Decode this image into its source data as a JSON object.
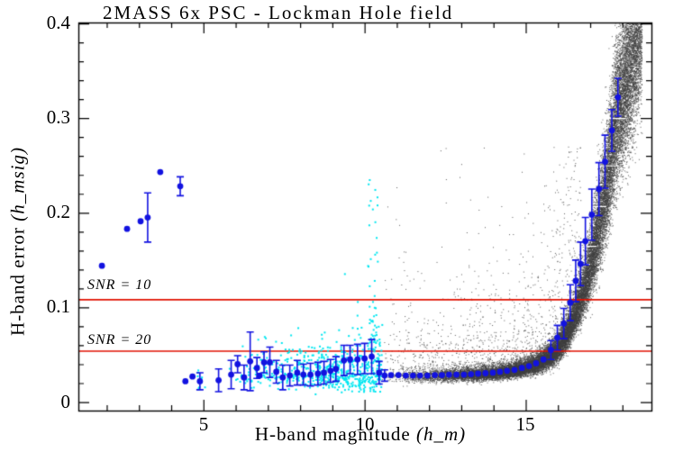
{
  "chart_data": {
    "type": "scatter",
    "title": "2MASS 6x PSC - Lockman Hole field",
    "xlabel_text": "H-band magnitude ",
    "xlabel_italic": "(h_m)",
    "ylabel_text": "H-band error ",
    "ylabel_italic": "(h_msig)",
    "xlim": [
      1.12,
      18.9
    ],
    "ylim": [
      -0.009,
      0.401
    ],
    "grid": false,
    "x_ticks": [
      {
        "value": 5,
        "label": "5"
      },
      {
        "value": 10,
        "label": "10"
      },
      {
        "value": 15,
        "label": "15"
      }
    ],
    "x_minor_step": 1,
    "y_ticks": [
      {
        "value": 0.0,
        "label": "0"
      },
      {
        "value": 0.1,
        "label": "0.1"
      },
      {
        "value": 0.2,
        "label": "0.2"
      },
      {
        "value": 0.3,
        "label": "0.3"
      },
      {
        "value": 0.4,
        "label": "0.4"
      }
    ],
    "y_minor_step": 0.02,
    "ref_lines": [
      {
        "label": "SNR = 10",
        "y": 0.1086,
        "color": "#e01000"
      },
      {
        "label": "SNR = 20",
        "y": 0.0543,
        "color": "#e01000"
      }
    ],
    "series": [
      {
        "name": "binned-medians-bright-outliers",
        "marker": "filled-circle",
        "color": "#1212e0",
        "points_mag_err_errbar": [
          [
            1.85,
            0.144,
            0
          ],
          [
            2.63,
            0.183,
            0
          ],
          [
            3.05,
            0.191,
            0
          ],
          [
            3.27,
            0.195,
            0.026
          ],
          [
            3.66,
            0.243,
            0
          ],
          [
            4.28,
            0.228,
            0.01
          ]
        ]
      },
      {
        "name": "binned-medians-main",
        "marker": "filled-circle",
        "color": "#1212e0",
        "points_mag_err_errbar": [
          [
            4.44,
            0.022,
            0
          ],
          [
            4.66,
            0.027,
            0
          ],
          [
            4.89,
            0.022,
            0.009
          ],
          [
            5.47,
            0.023,
            0.012
          ],
          [
            5.86,
            0.029,
            0.015
          ],
          [
            6.06,
            0.04,
            0.009
          ],
          [
            6.26,
            0.026,
            0.013
          ],
          [
            6.45,
            0.043,
            0.031
          ],
          [
            6.66,
            0.036,
            0.011
          ],
          [
            6.74,
            0.028,
            0
          ],
          [
            6.88,
            0.042,
            0.011
          ],
          [
            7.06,
            0.042,
            0.016
          ],
          [
            7.26,
            0.032,
            0.012
          ],
          [
            7.46,
            0.026,
            0.013
          ],
          [
            7.68,
            0.028,
            0.011
          ],
          [
            7.91,
            0.031,
            0.013
          ],
          [
            8.1,
            0.029,
            0.011
          ],
          [
            8.32,
            0.029,
            0.012
          ],
          [
            8.55,
            0.03,
            0.012
          ],
          [
            8.74,
            0.031,
            0.012
          ],
          [
            8.94,
            0.033,
            0.012
          ],
          [
            9.11,
            0.035,
            0.013
          ],
          [
            9.36,
            0.044,
            0.016
          ],
          [
            9.55,
            0.045,
            0.015
          ],
          [
            9.78,
            0.045,
            0.016
          ],
          [
            10.0,
            0.046,
            0.016
          ],
          [
            10.22,
            0.048,
            0.018
          ],
          [
            10.45,
            0.031,
            0.012
          ],
          [
            10.62,
            0.028,
            0.006
          ],
          [
            10.82,
            0.0285,
            0
          ],
          [
            11.05,
            0.0285,
            0
          ],
          [
            11.28,
            0.028,
            0
          ],
          [
            11.5,
            0.028,
            0
          ],
          [
            11.72,
            0.028,
            0
          ],
          [
            11.95,
            0.028,
            0
          ],
          [
            12.18,
            0.0285,
            0
          ],
          [
            12.4,
            0.0285,
            0
          ],
          [
            12.62,
            0.029,
            0
          ],
          [
            12.85,
            0.029,
            0
          ],
          [
            13.08,
            0.029,
            0
          ],
          [
            13.3,
            0.0295,
            0
          ],
          [
            13.52,
            0.03,
            0
          ],
          [
            13.75,
            0.0305,
            0
          ],
          [
            13.98,
            0.031,
            0
          ],
          [
            14.2,
            0.032,
            0
          ],
          [
            14.42,
            0.033,
            0
          ],
          [
            14.65,
            0.034,
            0
          ],
          [
            14.88,
            0.036,
            0
          ],
          [
            15.1,
            0.038,
            0
          ],
          [
            15.32,
            0.041,
            0
          ],
          [
            15.55,
            0.045,
            0
          ],
          [
            15.78,
            0.055,
            0.01
          ],
          [
            15.98,
            0.068,
            0.013
          ],
          [
            16.18,
            0.083,
            0.016
          ],
          [
            16.38,
            0.105,
            0.019
          ],
          [
            16.55,
            0.128,
            0.022
          ],
          [
            16.7,
            0.146,
            0.023
          ],
          [
            16.85,
            0.17,
            0.025
          ],
          [
            17.05,
            0.198,
            0.027
          ],
          [
            17.27,
            0.225,
            0.028
          ],
          [
            17.46,
            0.254,
            0.028
          ],
          [
            17.67,
            0.287,
            0.022
          ],
          [
            17.86,
            0.322,
            0.02
          ]
        ]
      }
    ],
    "point_clouds": [
      {
        "name": "psc-faint-sources",
        "color": "#3f3f3f",
        "count": 26000,
        "mag_range": [
          10.5,
          18.6
        ],
        "mag_power": 0.42,
        "scatter_sigma": 0.13,
        "ridge_mag_err": [
          [
            10.5,
            0.0275
          ],
          [
            11.5,
            0.0278
          ],
          [
            12.5,
            0.0285
          ],
          [
            13.5,
            0.0295
          ],
          [
            14.2,
            0.0315
          ],
          [
            14.8,
            0.035
          ],
          [
            15.3,
            0.04
          ],
          [
            15.8,
            0.05
          ],
          [
            16.2,
            0.068
          ],
          [
            16.6,
            0.1
          ],
          [
            17.0,
            0.145
          ],
          [
            17.4,
            0.21
          ],
          [
            17.8,
            0.3
          ],
          [
            18.3,
            0.37
          ],
          [
            18.6,
            0.43
          ]
        ]
      },
      {
        "name": "psc-faint-halo-outliers",
        "color": "#3f3f3f",
        "count": 900,
        "mag_range": [
          10.6,
          16.7
        ],
        "mag_power": 0.8,
        "scatter_sigma": 0.75,
        "y_cap": 0.27
      },
      {
        "name": "bright-calibration-sources",
        "color": "#00e6f0",
        "count": 640,
        "mag_range": [
          5.7,
          10.55
        ],
        "mag_power": 0.55,
        "y_center": 0.031,
        "scatter_sigma": 0.45,
        "y_min": 0.005,
        "y_max": 0.15
      },
      {
        "name": "bright-streak-10.3mag",
        "color": "#00e6f0",
        "count": 50,
        "mag_range": [
          10.1,
          10.42
        ],
        "y_range": [
          0.05,
          0.235
        ]
      },
      {
        "name": "bright-left-bits",
        "color": "#00e6f0",
        "count": 10,
        "mag_range": [
          4.8,
          5.05
        ],
        "y_range": [
          0.012,
          0.036
        ]
      }
    ],
    "white_dashes_x1_x2_y": [
      [
        17.2,
        18.1,
        0.3
      ],
      [
        16.9,
        17.9,
        0.25
      ],
      [
        16.6,
        17.5,
        0.207
      ],
      [
        16.4,
        17.2,
        0.165
      ],
      [
        16.2,
        17.0,
        0.146
      ],
      [
        15.95,
        16.7,
        0.12
      ],
      [
        15.7,
        16.4,
        0.095
      ],
      [
        15.5,
        16.1,
        0.075
      ]
    ],
    "colors": {
      "frame": "#000000",
      "background": "#ffffff",
      "binned": "#1212e0",
      "bright": "#00e6f0",
      "faint": "#3f3f3f",
      "snr_line": "#e01000"
    }
  }
}
